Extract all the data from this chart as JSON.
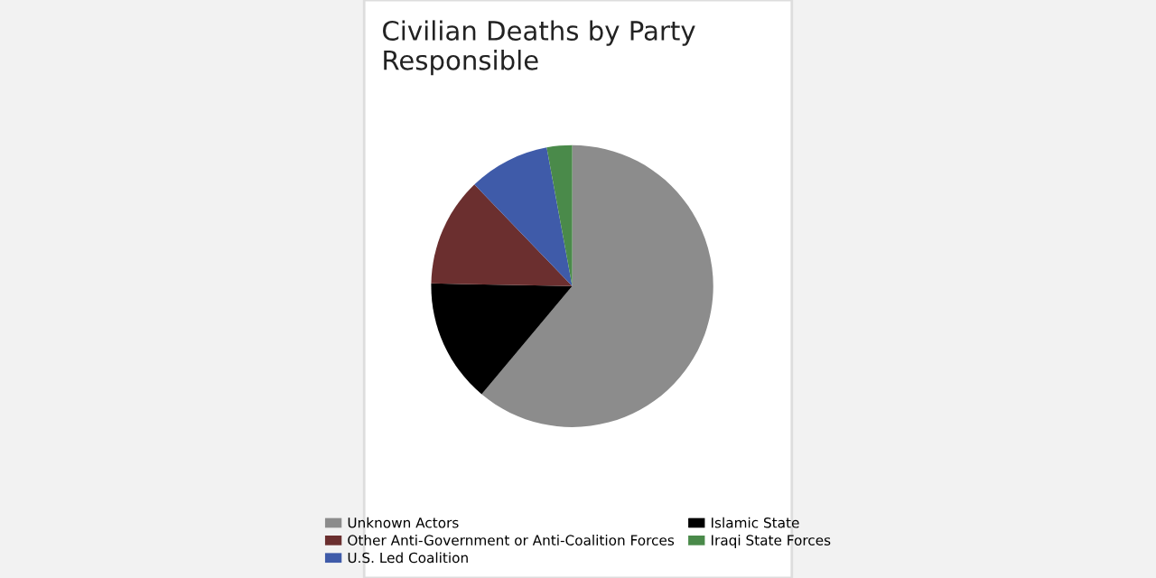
{
  "chart_data": {
    "type": "pie",
    "title": "Civilian Deaths by Party\nResponsible",
    "categories": [
      "Unknown Actors",
      "Islamic State",
      "Other Anti-Government or Anti-Coalition Forces",
      "U.S. Led Coalition",
      "Iraqi State Forces"
    ],
    "values": [
      61.1,
      14.2,
      12.5,
      9.3,
      2.9
    ],
    "colors": [
      "#8c8c8c",
      "#000000",
      "#6b2f2f",
      "#3f5ba9",
      "#4a8a4a"
    ],
    "legend": "bottom"
  }
}
